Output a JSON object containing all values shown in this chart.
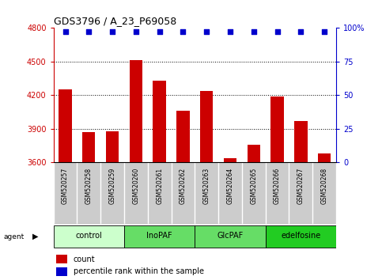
{
  "title": "GDS3796 / A_23_P69058",
  "samples": [
    "GSM520257",
    "GSM520258",
    "GSM520259",
    "GSM520260",
    "GSM520261",
    "GSM520262",
    "GSM520263",
    "GSM520264",
    "GSM520265",
    "GSM520266",
    "GSM520267",
    "GSM520268"
  ],
  "counts": [
    4250,
    3870,
    3880,
    4510,
    4330,
    4060,
    4240,
    3640,
    3760,
    4190,
    3970,
    3680
  ],
  "percentile_rank": 97,
  "ylim_left": [
    3600,
    4800
  ],
  "ylim_right": [
    0,
    100
  ],
  "yticks_left": [
    3600,
    3900,
    4200,
    4500,
    4800
  ],
  "yticks_right": [
    0,
    25,
    50,
    75,
    100
  ],
  "grid_yticks": [
    3900,
    4200,
    4500
  ],
  "groups": [
    {
      "label": "control",
      "start": 0,
      "end": 3,
      "color": "#ccffcc"
    },
    {
      "label": "InoPAF",
      "start": 3,
      "end": 6,
      "color": "#66dd66"
    },
    {
      "label": "GlcPAF",
      "start": 6,
      "end": 9,
      "color": "#66dd66"
    },
    {
      "label": "edelfosine",
      "start": 9,
      "end": 12,
      "color": "#22cc22"
    }
  ],
  "bar_color": "#cc0000",
  "dot_color": "#0000cc",
  "bar_width": 0.55,
  "grid_color": "#000000",
  "background_color": "#ffffff",
  "sample_bg_color": "#cccccc",
  "tick_color_left": "#cc0000",
  "tick_color_right": "#0000cc",
  "legend_count_label": "count",
  "legend_percentile_label": "percentile rank within the sample",
  "figsize": [
    4.83,
    3.54
  ],
  "dpi": 100
}
